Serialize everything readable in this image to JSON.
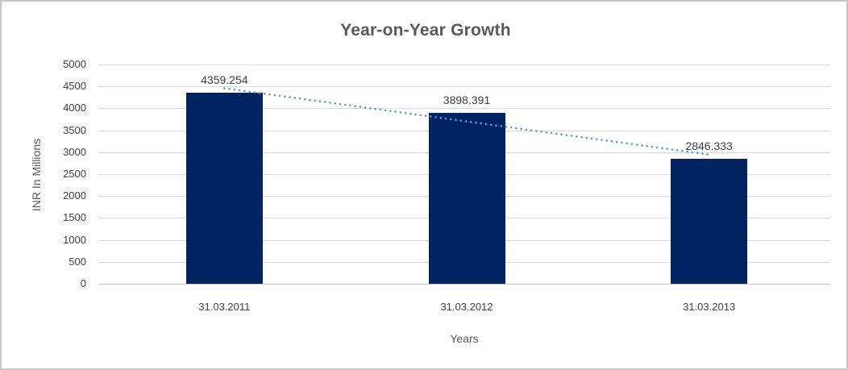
{
  "window": {
    "background": "#ffffff",
    "border_color": "#c6c6c6"
  },
  "chart_data": {
    "type": "bar",
    "title": "Year-on-Year Growth",
    "categories": [
      "31.03.2011",
      "31.03.2012",
      "31.03.2013"
    ],
    "values": [
      4359.254,
      3898.391,
      2846.333
    ],
    "data_labels": [
      "4359.254",
      "3898.391",
      "2846.333"
    ],
    "xlabel": "Years",
    "ylabel": "INR In Millions",
    "ylim": [
      0,
      5000
    ],
    "ytick_step": 500,
    "ytick_labels": [
      "0",
      "500",
      "1000",
      "1500",
      "2000",
      "2500",
      "3000",
      "3500",
      "4000",
      "4500",
      "5000"
    ],
    "grid": true,
    "legend": "none",
    "bar_color": "#002361",
    "gridline_color": "#d9d9d9",
    "axis_line_color": "#bfbfbf",
    "label_color": "#404040",
    "title_color": "#595959",
    "axis_title_color": "#595959",
    "trendline": {
      "type": "linear",
      "style": "dotted",
      "color": "#5B9BD5",
      "start_value": 4457.8,
      "end_value": 2944.9
    }
  }
}
